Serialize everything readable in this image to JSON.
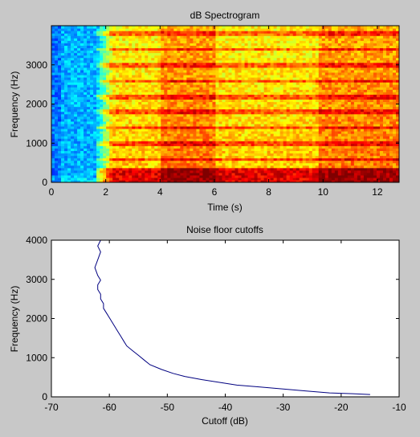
{
  "chart_data": [
    {
      "type": "heatmap",
      "title": "dB Spectrogram",
      "xlabel": "Time (s)",
      "ylabel": "Frequency (Hz)",
      "xlim": [
        0,
        12.8
      ],
      "ylim": [
        0,
        4000
      ],
      "x_ticks": [
        0,
        2,
        4,
        6,
        8,
        10,
        12
      ],
      "y_ticks": [
        0,
        1000,
        2000,
        3000
      ],
      "colormap": "jet",
      "grid": false,
      "time_segments": [
        {
          "start": 0,
          "end": 0.3,
          "level": "low"
        },
        {
          "start": 0.3,
          "end": 1.7,
          "level": "low"
        },
        {
          "start": 1.7,
          "end": 2.3,
          "level": "rising"
        },
        {
          "start": 2.3,
          "end": 4.0,
          "level": "medium"
        },
        {
          "start": 4.0,
          "end": 6.0,
          "level": "high"
        },
        {
          "start": 6.0,
          "end": 9.8,
          "level": "medium"
        },
        {
          "start": 9.8,
          "end": 12.8,
          "level": "high"
        }
      ],
      "harmonic_lines_hz": [
        600,
        1000,
        1400,
        1800,
        2200,
        2600,
        3000,
        3400,
        3800
      ]
    },
    {
      "type": "line",
      "title": "Noise floor cutoffs",
      "xlabel": "Cutoff (dB)",
      "ylabel": "Frequency (Hz)",
      "xlim": [
        -70,
        -10
      ],
      "ylim": [
        0,
        4000
      ],
      "x_ticks": [
        -70,
        -60,
        -50,
        -40,
        -30,
        -20,
        -10
      ],
      "y_ticks": [
        0,
        1000,
        2000,
        3000,
        4000
      ],
      "line_color": "#000080",
      "grid": false,
      "series": [
        {
          "x": [
            -15,
            -18,
            -22,
            -26,
            -30,
            -34,
            -38,
            -41,
            -44,
            -47,
            -49,
            -51,
            -53,
            -54,
            -55,
            -56,
            -57,
            -57.5,
            -58,
            -58.5,
            -59,
            -59.5,
            -60,
            -60.5,
            -61,
            -61,
            -61.5,
            -61.5,
            -62,
            -62,
            -61.5,
            -62,
            -62.5,
            -62,
            -61.5,
            -62,
            -61.5
          ],
          "y": [
            60,
            80,
            100,
            150,
            200,
            250,
            300,
            370,
            440,
            520,
            600,
            700,
            820,
            940,
            1060,
            1180,
            1300,
            1420,
            1540,
            1660,
            1780,
            1900,
            2020,
            2140,
            2260,
            2380,
            2500,
            2620,
            2740,
            2860,
            2980,
            3100,
            3300,
            3500,
            3700,
            3850,
            4000
          ]
        }
      ]
    }
  ]
}
